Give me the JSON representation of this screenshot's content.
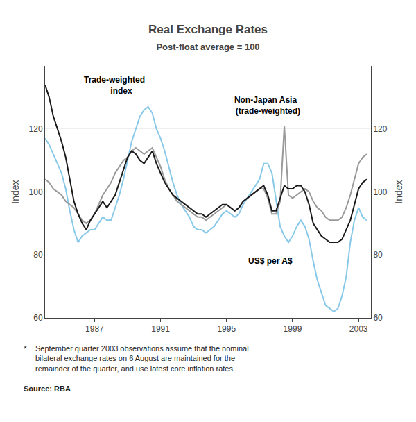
{
  "chart_data": {
    "type": "line",
    "title": "Real Exchange Rates",
    "subtitle": "Post-float average = 100",
    "ylabel": "Index",
    "y2label": "Index",
    "x": [
      1984.0,
      1984.25,
      1984.5,
      1984.75,
      1985.0,
      1985.25,
      1985.5,
      1985.75,
      1986.0,
      1986.25,
      1986.5,
      1986.75,
      1987.0,
      1987.25,
      1987.5,
      1987.75,
      1988.0,
      1988.25,
      1988.5,
      1988.75,
      1989.0,
      1989.25,
      1989.5,
      1989.75,
      1990.0,
      1990.25,
      1990.5,
      1990.75,
      1991.0,
      1991.25,
      1991.5,
      1991.75,
      1992.0,
      1992.25,
      1992.5,
      1992.75,
      1993.0,
      1993.25,
      1993.5,
      1993.75,
      1994.0,
      1994.25,
      1994.5,
      1994.75,
      1995.0,
      1995.25,
      1995.5,
      1995.75,
      1996.0,
      1996.25,
      1996.5,
      1996.75,
      1997.0,
      1997.25,
      1997.5,
      1997.75,
      1998.0,
      1998.25,
      1998.5,
      1998.75,
      1999.0,
      1999.25,
      1999.5,
      1999.75,
      2000.0,
      2000.25,
      2000.5,
      2000.75,
      2001.0,
      2001.25,
      2001.5,
      2001.75,
      2002.0,
      2002.25,
      2002.5,
      2002.75,
      2003.0,
      2003.25,
      2003.5
    ],
    "series": [
      {
        "color": "#88c8e8",
        "values": [
          117,
          115,
          112,
          109,
          106,
          101,
          94,
          88,
          84,
          86,
          87,
          88,
          88,
          90,
          92,
          91,
          91,
          95,
          99,
          104,
          110,
          116,
          120,
          124,
          126,
          127,
          125,
          120,
          117,
          113,
          108,
          103,
          99,
          96,
          94,
          92,
          89,
          88,
          88,
          87,
          88,
          89,
          91,
          93,
          94,
          93,
          92,
          93,
          96,
          98,
          100,
          102,
          104,
          109,
          109,
          106,
          97,
          89,
          86,
          84,
          86,
          89,
          91,
          89,
          85,
          78,
          72,
          68,
          64,
          63,
          62,
          63,
          67,
          73,
          84,
          91,
          95,
          92,
          91
        ]
      },
      {
        "color": "#999999",
        "values": [
          104,
          103,
          101,
          100,
          99,
          97,
          96,
          95,
          93,
          91,
          90,
          91,
          93,
          96,
          99,
          101,
          103,
          106,
          108,
          110,
          111,
          113,
          114,
          113,
          112,
          113,
          114,
          111,
          108,
          104,
          101,
          99,
          97,
          96,
          95,
          94,
          93,
          92,
          92,
          91,
          92,
          93,
          94,
          95,
          96,
          95,
          94,
          95,
          97,
          98,
          99,
          100,
          101,
          101,
          98,
          93,
          93,
          97,
          121,
          99,
          98,
          99,
          100,
          101,
          100,
          97,
          95,
          94,
          92,
          91,
          91,
          91,
          92,
          95,
          99,
          104,
          109,
          111,
          112
        ]
      },
      {
        "color": "#1a1a1a",
        "values": [
          134,
          130,
          124,
          120,
          116,
          111,
          104,
          97,
          93,
          90,
          88,
          91,
          93,
          95,
          97,
          95,
          97,
          99,
          103,
          107,
          111,
          113,
          112,
          110,
          109,
          111,
          113,
          109,
          106,
          103,
          101,
          99,
          98,
          97,
          96,
          95,
          94,
          93,
          93,
          92,
          93,
          94,
          95,
          96,
          96,
          95,
          94,
          95,
          97,
          98,
          99,
          100,
          101,
          102,
          99,
          94,
          94,
          98,
          102,
          101,
          101,
          102,
          102,
          100,
          96,
          90,
          88,
          86,
          85,
          84,
          84,
          84,
          85,
          88,
          91,
          96,
          101,
          103,
          104
        ]
      }
    ],
    "xlim": [
      1984.0,
      2003.75
    ],
    "xticks": [
      1987,
      1991,
      1995,
      1999,
      2003
    ],
    "ylim": [
      60,
      140
    ],
    "yticks": [
      60,
      80,
      100,
      120
    ],
    "y2lim": [
      60,
      140
    ],
    "y2ticks": [
      60,
      80,
      100,
      120
    ],
    "grid": true,
    "annotations": [
      "Trade-weighted\n      index",
      "Non-Japan Asia\n  (trade-weighted)",
      "US$ per A$"
    ],
    "footnotes": [
      "*",
      "September quarter 2003 observations assume that the nominal\nbilateral exchange rates on 6 August are maintained for the\nremainder of the quarter, and use latest core inflation rates.",
      "Source: RBA"
    ]
  }
}
